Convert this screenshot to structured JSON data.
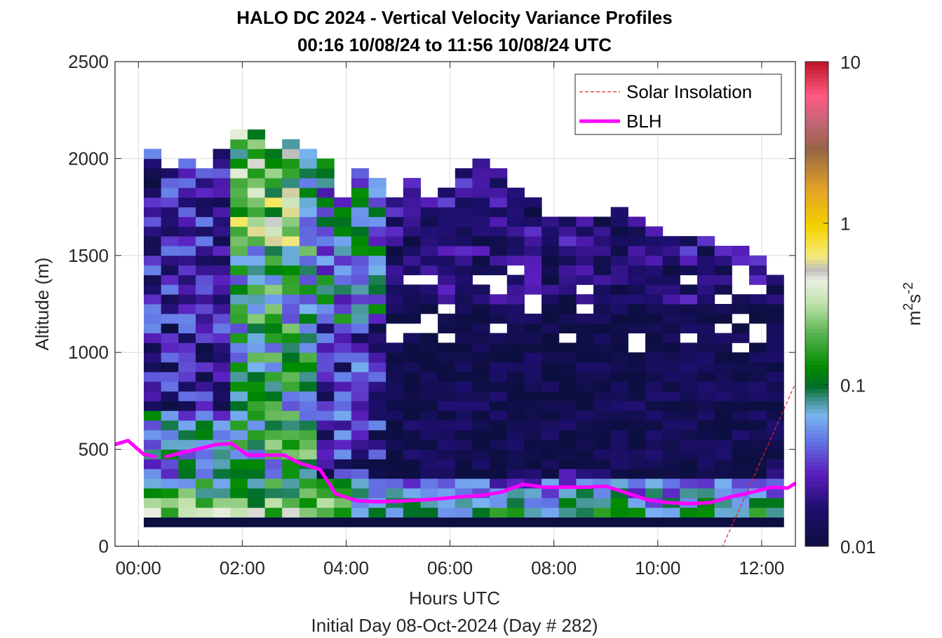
{
  "chart_data": {
    "type": "heatmap",
    "title": "HALO DC 2024 - Vertical Velocity Variance Profiles",
    "subtitle": "00:16 10/08/24 to 11:56 10/08/24  UTC",
    "xlabel": "Hours UTC",
    "xlabel2": "Initial Day 08-Oct-2024 (Day # 282)",
    "ylabel": "Altitude (m)",
    "xlim": [
      -0.45,
      12.65
    ],
    "ylim": [
      0,
      2500
    ],
    "x_ticks": [
      0,
      2,
      4,
      6,
      8,
      10,
      12
    ],
    "x_tick_labels": [
      "00:00",
      "02:00",
      "04:00",
      "06:00",
      "08:00",
      "10:00",
      "12:00"
    ],
    "y_ticks": [
      0,
      500,
      1000,
      1500,
      2000,
      2500
    ],
    "y_tick_labels": [
      "0",
      "500",
      "1000",
      "1500",
      "2000",
      "2500"
    ],
    "grid": true,
    "colorbar": {
      "scale": "log",
      "range": [
        0.01,
        10
      ],
      "ticks": [
        0.01,
        0.1,
        1,
        10
      ],
      "tick_labels": [
        "0.01",
        "0.1",
        "1",
        "10"
      ],
      "label": "m²s⁻²",
      "label_base": "m",
      "label_exp1": "2",
      "label_mid": "s",
      "label_exp2": "-2"
    },
    "legend": {
      "position": "top-right",
      "entries": [
        {
          "name": "Solar Insolation",
          "color": "#e8222a",
          "style": "dashed"
        },
        {
          "name": "BLH",
          "color": "#ff00ff",
          "style": "solid"
        }
      ]
    },
    "heatmap": {
      "time_start_h": 0.27,
      "time_end_h": 11.93,
      "dt_h": 0.333,
      "altitude_bin_m": 50,
      "lowest_bin_m": 100,
      "top_altitude_m": [
        2050,
        1950,
        2000,
        1950,
        2050,
        2150,
        2150,
        2050,
        2100,
        2050,
        2000,
        1800,
        1950,
        1900,
        1800,
        1900,
        1800,
        1850,
        1950,
        2000,
        1950,
        1850,
        1800,
        1700,
        1700,
        1700,
        1700,
        1750,
        1700,
        1650,
        1600,
        1600,
        1600,
        1550,
        1550,
        1500,
        1400
      ],
      "values_description": "vertical velocity variance, m^2 s^-2, per profile (column) and altitude bin (row)"
    },
    "series": [
      {
        "name": "BLH",
        "color": "#ff00ff",
        "segments": [
          {
            "x": [
              -0.45,
              -0.2,
              0.1,
              0.35
            ],
            "y": [
              525,
              545,
              475,
              460
            ]
          },
          {
            "x": [
              0.5,
              0.8,
              1.2,
              1.5,
              1.8,
              2.1,
              2.4,
              2.8,
              3.1,
              3.5,
              3.8,
              4.2,
              4.6,
              5.0,
              5.4,
              5.8,
              6.2,
              6.6,
              7.0,
              7.4,
              7.8,
              8.2,
              8.6,
              9.0,
              9.4,
              9.8,
              10.2,
              10.6,
              11.0,
              11.4,
              11.8,
              12.2,
              12.5,
              12.65
            ],
            "y": [
              460,
              480,
              505,
              525,
              530,
              470,
              470,
              470,
              430,
              395,
              270,
              235,
              230,
              232,
              238,
              245,
              255,
              262,
              280,
              320,
              305,
              305,
              305,
              310,
              275,
              240,
              225,
              220,
              225,
              255,
              278,
              305,
              300,
              325
            ]
          }
        ]
      },
      {
        "name": "Solar Insolation",
        "color": "#e8222a",
        "x": [
          -0.45,
          11.25,
          12.65
        ],
        "y": [
          0,
          0,
          840
        ]
      }
    ]
  }
}
